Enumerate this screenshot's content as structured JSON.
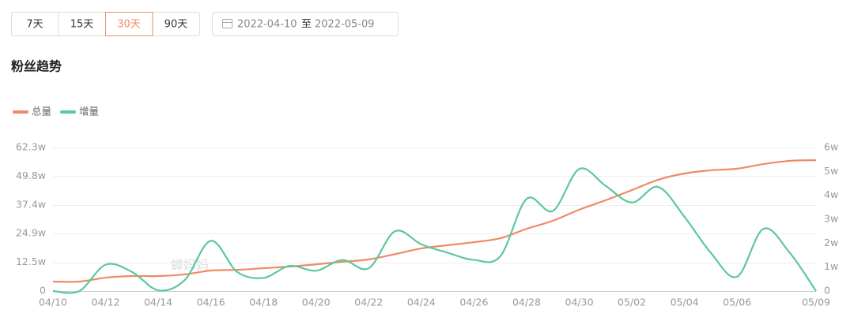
{
  "toolbar": {
    "ranges": [
      "7天",
      "15天",
      "30天",
      "90天"
    ],
    "active_range": 2,
    "date_start": "2022-04-10",
    "date_sep": "至",
    "date_end": "2022-05-09"
  },
  "section_title": "粉丝趋势",
  "watermark": "蝉妈妈",
  "chart_data": {
    "type": "line",
    "smooth": true,
    "categories": [
      "04/10",
      null,
      "04/12",
      null,
      "04/14",
      null,
      "04/16",
      null,
      "04/18",
      null,
      "04/20",
      null,
      "04/22",
      null,
      "04/24",
      null,
      "04/26",
      null,
      "04/28",
      null,
      "04/30",
      null,
      "05/02",
      null,
      "05/04",
      null,
      "05/06",
      null,
      null,
      "05/09"
    ],
    "series": [
      {
        "name": "总量",
        "color": "#ef8a66",
        "values": [
          4.1,
          4.1,
          5.8,
          6.5,
          6.5,
          7.2,
          8.9,
          9.2,
          9.9,
          10.6,
          11.6,
          12.7,
          13.7,
          16,
          18.5,
          19.9,
          21.2,
          22.9,
          27,
          30.5,
          35.3,
          39.4,
          43.8,
          48.3,
          51,
          52.4,
          53.1,
          55.1,
          56.5,
          56.8
        ]
      },
      {
        "name": "增量",
        "color": "#5cc89e",
        "axis": "y2",
        "values": [
          0,
          0,
          1.1,
          0.8,
          0.03,
          0.45,
          2.1,
          0.8,
          0.55,
          1.05,
          0.85,
          1.3,
          0.95,
          2.5,
          1.95,
          1.6,
          1.3,
          1.45,
          3.85,
          3.35,
          5.1,
          4.4,
          3.7,
          4.35,
          3.1,
          1.6,
          0.6,
          2.6,
          1.6,
          0
        ]
      }
    ],
    "ylim": [
      0,
      62.3
    ],
    "yticks": [
      0,
      {
        "value": 12.46,
        "label": "12.5w"
      },
      {
        "value": 24.92,
        "label": "24.9w"
      },
      {
        "value": 37.38,
        "label": "37.4w"
      },
      {
        "value": 49.84,
        "label": "49.8w"
      },
      {
        "value": 62.3,
        "label": "62.3w"
      }
    ],
    "y2lim": [
      0,
      6
    ],
    "y2ticks": [
      0,
      {
        "value": 1,
        "label": "1w"
      },
      {
        "value": 2,
        "label": "2w"
      },
      {
        "value": 3,
        "label": "3w"
      },
      {
        "value": 4,
        "label": "4w"
      },
      {
        "value": 5,
        "label": "5w"
      },
      {
        "value": 6,
        "label": "6w"
      }
    ],
    "grid": true,
    "legend": "top-left"
  }
}
